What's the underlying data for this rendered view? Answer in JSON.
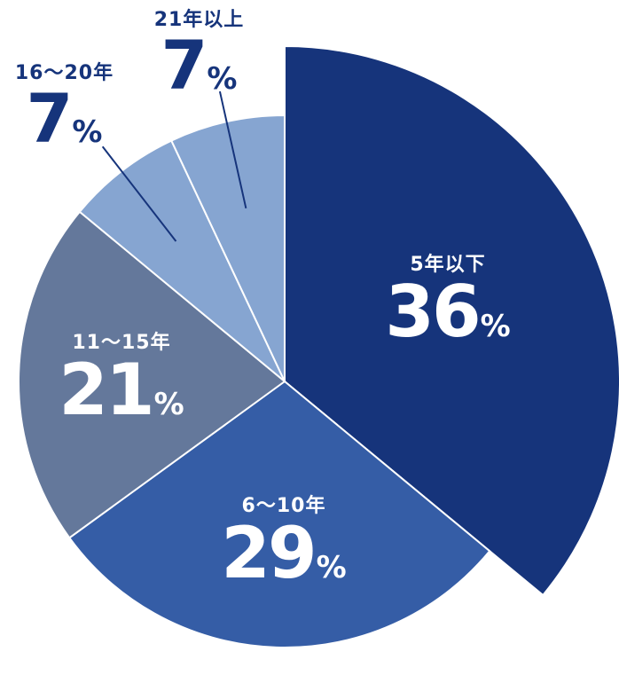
{
  "chart_data": {
    "type": "pie",
    "start_angle_deg": 0,
    "direction": "clockwise",
    "categories": [
      "5年以下",
      "6〜10年",
      "11〜15年",
      "16〜20年",
      "21年以上"
    ],
    "values": [
      36,
      29,
      21,
      7,
      7
    ],
    "unit": "%",
    "colors": [
      "#16347b",
      "#355da6",
      "#64789b",
      "#86a5d1",
      "#86a5d1"
    ],
    "slice_offset_emphasis": [
      1,
      0,
      0,
      0,
      0
    ],
    "label_placement": [
      "inside",
      "inside",
      "inside",
      "outside",
      "outside"
    ],
    "label_color_inside": "#ffffff",
    "label_color_outside": "#16347b",
    "leader_line_color": "#16347b"
  }
}
